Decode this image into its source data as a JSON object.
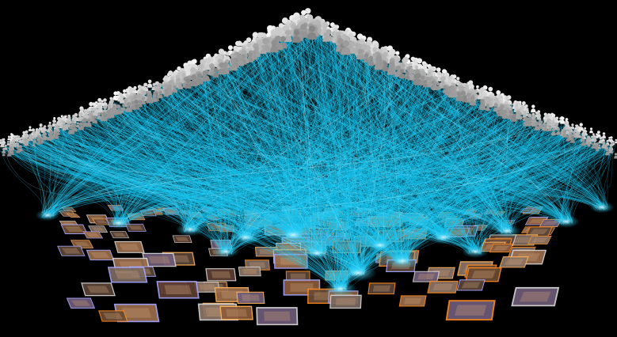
{
  "scene": {
    "background": "#000000",
    "link_color": "#18c8f4",
    "link_glow_color": "#9fefff",
    "people_color_front": "#f2f2f2",
    "people_color_back": "#8d8d8d",
    "thumb_fill_colors": [
      "#6b4a33",
      "#8a5b3b",
      "#5a4438",
      "#7a6a62",
      "#9b6d4c",
      "#5d3e34",
      "#6e5c7a",
      "#8c7466"
    ],
    "thumb_border_colors": [
      "#ff8a1e",
      "#d8d8d8",
      "#a7a7ff",
      "#ffb35a"
    ],
    "people_icon": "person-icon",
    "thumbnail_icon": "photo-thumbnail-icon"
  }
}
